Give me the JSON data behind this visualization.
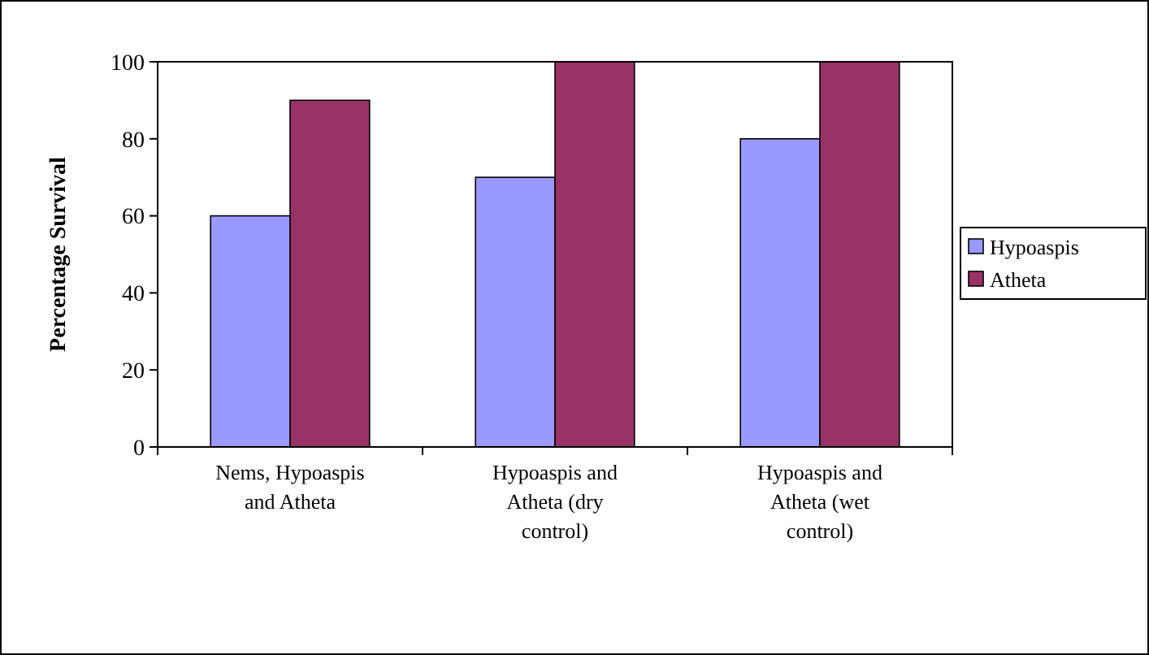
{
  "chart_data": {
    "type": "bar",
    "ylabel": "Percentage Survival",
    "categories": [
      "Nems, Hypoaspis and Atheta",
      "Hypoaspis and Atheta (dry control)",
      "Hypoaspis and Atheta (wet control)"
    ],
    "series": [
      {
        "name": "Hypoaspis",
        "color": "#9999ff",
        "values": [
          60,
          70,
          80
        ]
      },
      {
        "name": "Atheta",
        "color": "#993366",
        "values": [
          90,
          100,
          100
        ]
      }
    ],
    "ylim": [
      0,
      100
    ],
    "yticks": [
      0,
      20,
      40,
      60,
      80,
      100
    ],
    "grid": false,
    "legend": "right"
  }
}
